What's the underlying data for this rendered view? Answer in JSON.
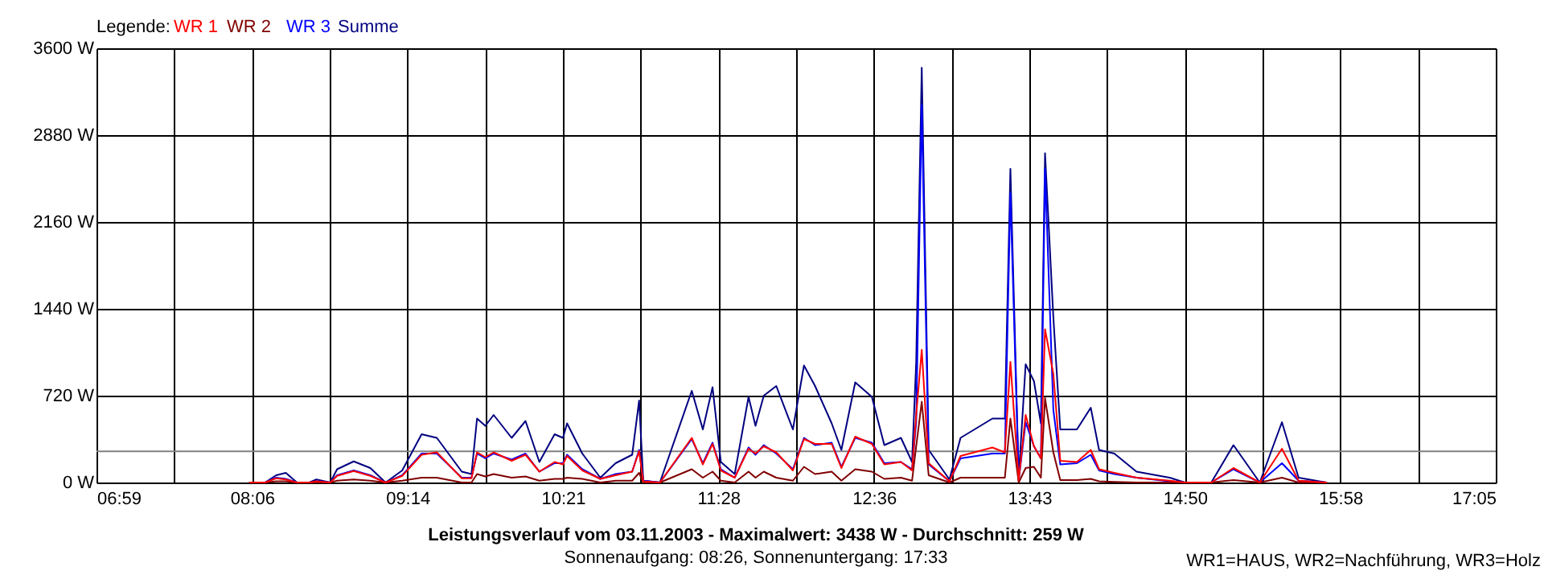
{
  "chart_data": {
    "type": "line",
    "title": "Leistungsverlauf vom 03.11.2003 - Maximalwert: 3438 W - Durchschnitt: 259 W",
    "subtitle": "Sonnenaufgang: 08:26, Sonnenuntergang: 17:33",
    "legend_title": "Legende:",
    "annotations": [
      "WR1=HAUS, WR2=Nachführung, WR3=Holz"
    ],
    "x": [
      8.09,
      8.2,
      8.28,
      8.35,
      8.43,
      8.52,
      8.57,
      8.67,
      8.72,
      8.84,
      8.96,
      9.07,
      9.19,
      9.33,
      9.44,
      9.62,
      9.69,
      9.73,
      9.79,
      9.85,
      9.98,
      10.08,
      10.18,
      10.29,
      10.35,
      10.38,
      10.49,
      10.62,
      10.73,
      10.85,
      10.9,
      10.93,
      11.05,
      11.28,
      11.36,
      11.43,
      11.49,
      11.59,
      11.69,
      11.74,
      11.8,
      11.89,
      12.01,
      12.09,
      12.17,
      12.29,
      12.36,
      12.46,
      12.58,
      12.67,
      12.79,
      12.87,
      12.9,
      12.94,
      12.99,
      13.14,
      13.22,
      13.45,
      13.54,
      13.58,
      13.64,
      13.69,
      13.75,
      13.8,
      13.83,
      13.89,
      13.94,
      14.06,
      14.16,
      14.22,
      14.33,
      14.49,
      14.73,
      14.84,
      15.03,
      15.19,
      15.38,
      15.54,
      15.66,
      15.86
    ],
    "series": [
      {
        "name": "WR 1",
        "color": "#ff0000",
        "values": [
          0,
          0,
          35,
          25,
          0,
          0,
          10,
          0,
          55,
          95,
          55,
          0,
          55,
          230,
          250,
          35,
          35,
          250,
          210,
          250,
          180,
          230,
          90,
          170,
          150,
          220,
          100,
          30,
          60,
          90,
          260,
          10,
          0,
          370,
          150,
          320,
          100,
          40,
          280,
          240,
          300,
          250,
          100,
          360,
          320,
          320,
          120,
          380,
          320,
          150,
          170,
          100,
          560,
          1100,
          160,
          10,
          220,
          290,
          250,
          1000,
          20,
          560,
          300,
          200,
          1270,
          900,
          180,
          170,
          270,
          110,
          80,
          40,
          15,
          0,
          0,
          120,
          0,
          280,
          15,
          0
        ]
      },
      {
        "name": "WR 2",
        "color": "#800000",
        "values": [
          0,
          0,
          10,
          10,
          0,
          0,
          0,
          0,
          15,
          25,
          15,
          0,
          15,
          40,
          40,
          0,
          0,
          70,
          50,
          70,
          40,
          50,
          15,
          30,
          30,
          40,
          30,
          0,
          15,
          15,
          80,
          0,
          0,
          110,
          40,
          90,
          15,
          0,
          90,
          40,
          90,
          40,
          15,
          130,
          70,
          90,
          15,
          110,
          90,
          30,
          40,
          15,
          300,
          670,
          60,
          0,
          40,
          40,
          40,
          530,
          0,
          120,
          130,
          40,
          700,
          250,
          20,
          20,
          30,
          10,
          5,
          0,
          0,
          0,
          0,
          20,
          0,
          40,
          0,
          0
        ]
      },
      {
        "name": "WR 3",
        "color": "#0000ff",
        "values": [
          0,
          0,
          40,
          30,
          0,
          0,
          10,
          0,
          60,
          100,
          60,
          0,
          60,
          240,
          240,
          40,
          40,
          240,
          200,
          240,
          190,
          240,
          90,
          160,
          160,
          230,
          110,
          30,
          70,
          90,
          270,
          15,
          0,
          360,
          160,
          330,
          110,
          40,
          290,
          230,
          310,
          240,
          110,
          370,
          310,
          330,
          130,
          370,
          330,
          160,
          170,
          110,
          500,
          3130,
          150,
          10,
          200,
          240,
          240,
          2400,
          20,
          500,
          300,
          200,
          2600,
          600,
          150,
          160,
          230,
          100,
          70,
          40,
          10,
          0,
          0,
          110,
          0,
          160,
          15,
          0
        ]
      },
      {
        "name": "Summe",
        "color": "#000080",
        "values": [
          0,
          0,
          60,
          80,
          0,
          0,
          25,
          0,
          110,
          175,
          120,
          0,
          100,
          400,
          370,
          90,
          70,
          530,
          470,
          560,
          370,
          510,
          170,
          400,
          370,
          490,
          240,
          40,
          160,
          230,
          680,
          15,
          0,
          760,
          440,
          790,
          170,
          70,
          710,
          470,
          720,
          800,
          440,
          970,
          800,
          490,
          270,
          830,
          710,
          310,
          370,
          170,
          1000,
          3438,
          270,
          25,
          370,
          530,
          530,
          2600,
          40,
          980,
          840,
          490,
          2730,
          1370,
          440,
          440,
          620,
          270,
          240,
          90,
          40,
          0,
          0,
          310,
          0,
          500,
          40,
          0
        ]
      }
    ],
    "xlim": [
      6.9833,
      17.0833
    ],
    "xticks": [
      {
        "value": 6.9833,
        "label": "06:59"
      },
      {
        "value": 7.5444,
        "label": null
      },
      {
        "value": 8.1056,
        "label": "08:06"
      },
      {
        "value": 8.6667,
        "label": null
      },
      {
        "value": 9.2278,
        "label": "09:14"
      },
      {
        "value": 9.7889,
        "label": null
      },
      {
        "value": 10.35,
        "label": "10:21"
      },
      {
        "value": 10.9111,
        "label": null
      },
      {
        "value": 11.4722,
        "label": "11:28"
      },
      {
        "value": 12.0333,
        "label": null
      },
      {
        "value": 12.5944,
        "label": "12:36"
      },
      {
        "value": 13.1556,
        "label": null
      },
      {
        "value": 13.7167,
        "label": "13:43"
      },
      {
        "value": 14.2778,
        "label": null
      },
      {
        "value": 14.8389,
        "label": "14:50"
      },
      {
        "value": 15.4,
        "label": null
      },
      {
        "value": 15.9611,
        "label": "15:58"
      },
      {
        "value": 16.5222,
        "label": null
      },
      {
        "value": 17.0833,
        "label": "17:05"
      }
    ],
    "ylim": [
      0,
      3600
    ],
    "yticks": [
      {
        "value": 0,
        "label": "0 W"
      },
      {
        "value": 720,
        "label": "720 W"
      },
      {
        "value": 1440,
        "label": "1440 W"
      },
      {
        "value": 2160,
        "label": "2160 W"
      },
      {
        "value": 2880,
        "label": "2880 W"
      },
      {
        "value": 3600,
        "label": "3600 W"
      }
    ],
    "ref_lines": [
      {
        "axis": "y",
        "value": 259,
        "color": "#808080"
      }
    ],
    "grid": true,
    "legend": "top left"
  }
}
